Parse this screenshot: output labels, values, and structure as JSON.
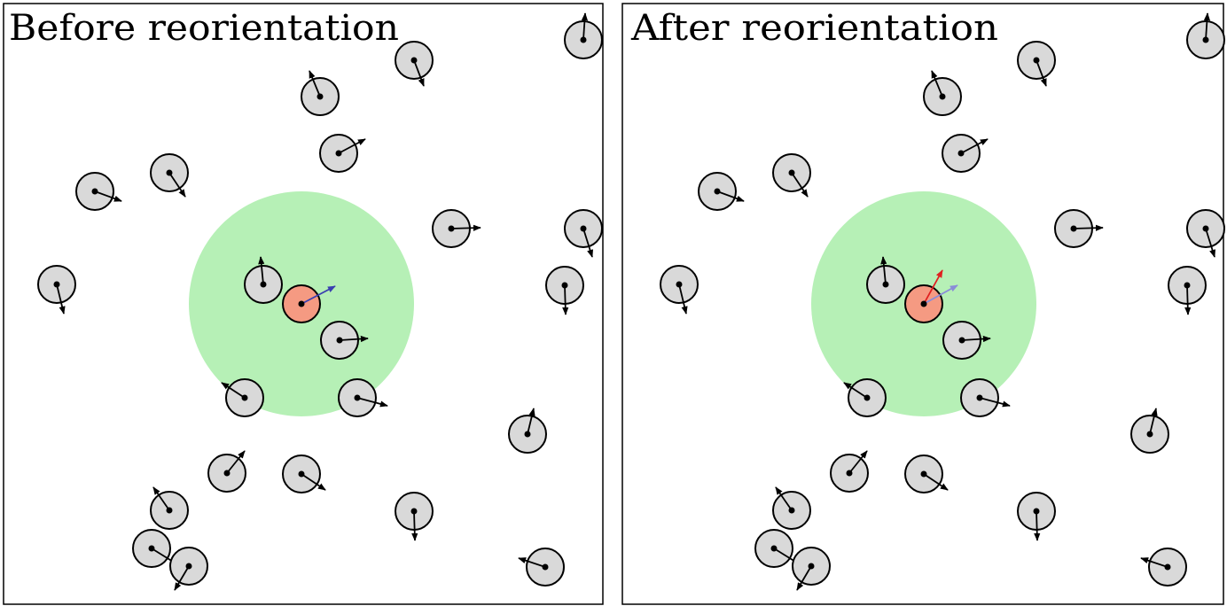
{
  "panels": [
    {
      "title": "Before reorientation"
    },
    {
      "title": "After reorientation"
    }
  ]
}
